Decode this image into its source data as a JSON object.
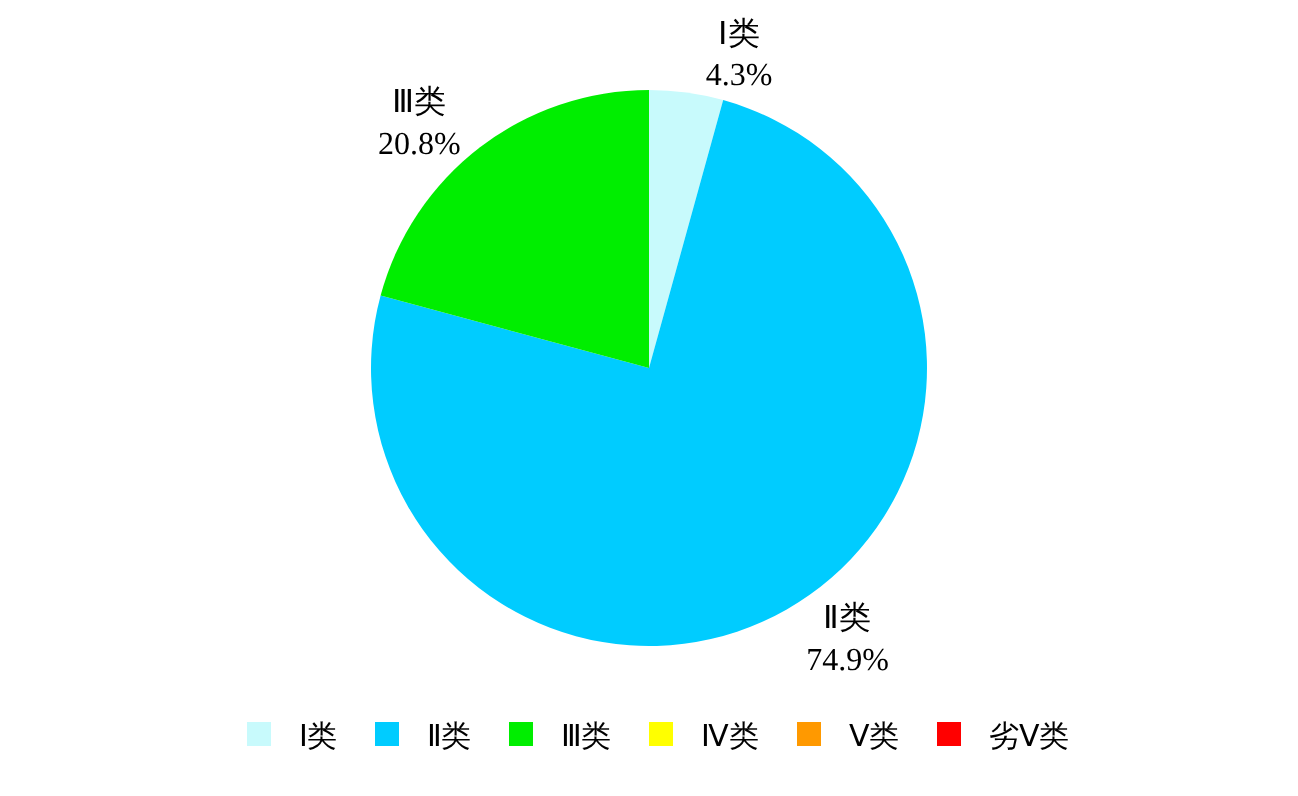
{
  "chart_data": {
    "type": "pie",
    "categories": [
      "Ⅰ类",
      "Ⅱ类",
      "Ⅲ类",
      "Ⅳ类",
      "Ⅴ类",
      "劣Ⅴ类"
    ],
    "values": [
      4.3,
      74.9,
      20.8,
      0,
      0,
      0
    ],
    "value_labels": [
      "4.3%",
      "74.9%",
      "20.8%",
      null,
      null,
      null
    ],
    "colors": [
      "#c8fafc",
      "#00ccff",
      "#00ee00",
      "#ffff00",
      "#ff9900",
      "#ff0000"
    ],
    "legend": "bottom"
  }
}
